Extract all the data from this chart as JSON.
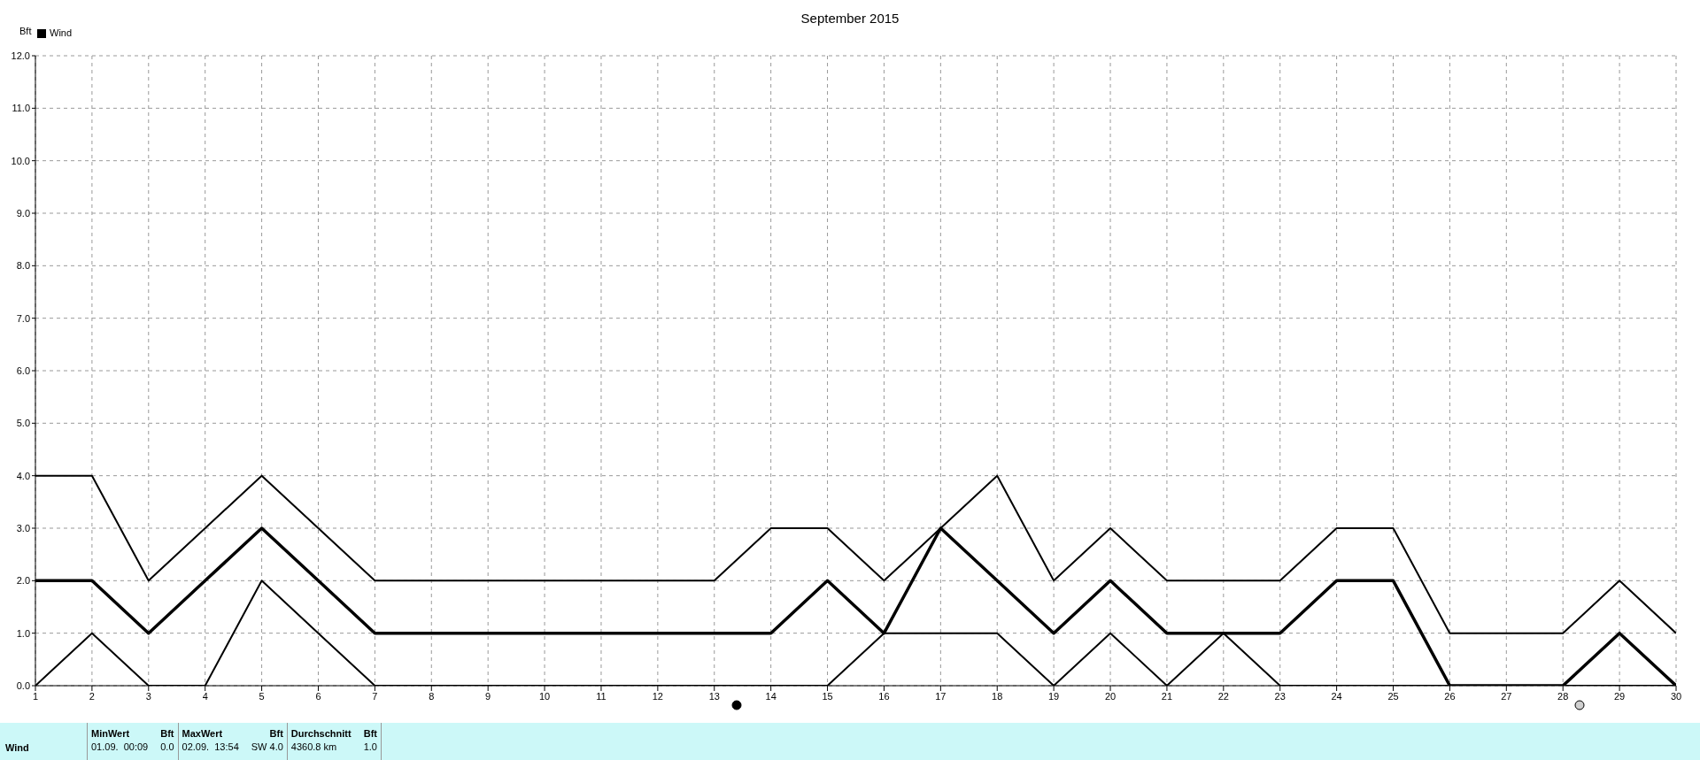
{
  "chart_data": {
    "type": "line",
    "title": "September 2015",
    "ylabel": "Bft",
    "x": [
      1,
      2,
      3,
      4,
      5,
      6,
      7,
      8,
      9,
      10,
      11,
      12,
      13,
      14,
      15,
      16,
      17,
      18,
      19,
      20,
      21,
      22,
      23,
      24,
      25,
      26,
      27,
      28,
      29,
      30
    ],
    "series": [
      {
        "color": "#000000",
        "values": [
          4,
          4,
          2,
          3,
          4,
          3,
          2,
          2,
          2,
          2,
          2,
          2,
          2,
          3,
          3,
          2,
          3,
          4,
          2,
          3,
          2,
          2,
          2,
          3,
          3,
          1,
          1,
          1,
          2,
          1
        ]
      },
      {
        "name": "Wind",
        "color": "#000000",
        "values": [
          2,
          2,
          1,
          2,
          3,
          2,
          1,
          1,
          1,
          1,
          1,
          1,
          1,
          1,
          2,
          1,
          3,
          2,
          1,
          2,
          1,
          1,
          1,
          2,
          2,
          0,
          0,
          0,
          1,
          0
        ]
      },
      {
        "color": "#000000",
        "values": [
          0,
          1,
          0,
          0,
          2,
          1,
          0,
          0,
          0,
          0,
          0,
          0,
          0,
          0,
          0,
          1,
          1,
          1,
          0,
          1,
          0,
          1,
          0,
          0,
          0,
          0,
          0,
          0,
          0,
          0
        ]
      }
    ],
    "xlim": [
      1,
      30
    ],
    "xticks": [
      1,
      2,
      3,
      4,
      5,
      6,
      7,
      8,
      9,
      10,
      11,
      12,
      13,
      14,
      15,
      16,
      17,
      18,
      19,
      20,
      21,
      22,
      23,
      24,
      25,
      26,
      27,
      28,
      29,
      30
    ],
    "ylim": [
      0,
      12
    ],
    "yticks": [
      {
        "value": 0,
        "label": "0.0"
      },
      {
        "value": 1,
        "label": "1.0"
      },
      {
        "value": 2,
        "label": "2.0"
      },
      {
        "value": 3,
        "label": "3.0"
      },
      {
        "value": 4,
        "label": "4.0"
      },
      {
        "value": 5,
        "label": "5.0"
      },
      {
        "value": 6,
        "label": "6.0"
      },
      {
        "value": 7,
        "label": "7.0"
      },
      {
        "value": 8,
        "label": "8.0"
      },
      {
        "value": 9,
        "label": "9.0"
      },
      {
        "value": 10,
        "label": "10.0"
      },
      {
        "value": 11,
        "label": "11.0"
      },
      {
        "value": 12,
        "label": "12.0"
      }
    ],
    "grid": true,
    "legend": "top left",
    "marker": "none",
    "line_style": "solid",
    "annotations": [
      "Wind",
      "MinWert",
      "Bft",
      "01.09.  00:09",
      "0.0",
      "MaxWert",
      "Bft",
      "02.09.  13:54",
      "SW 4.0",
      "Durchschnitt",
      "Bft",
      "4360.8 km",
      "1.0"
    ]
  }
}
